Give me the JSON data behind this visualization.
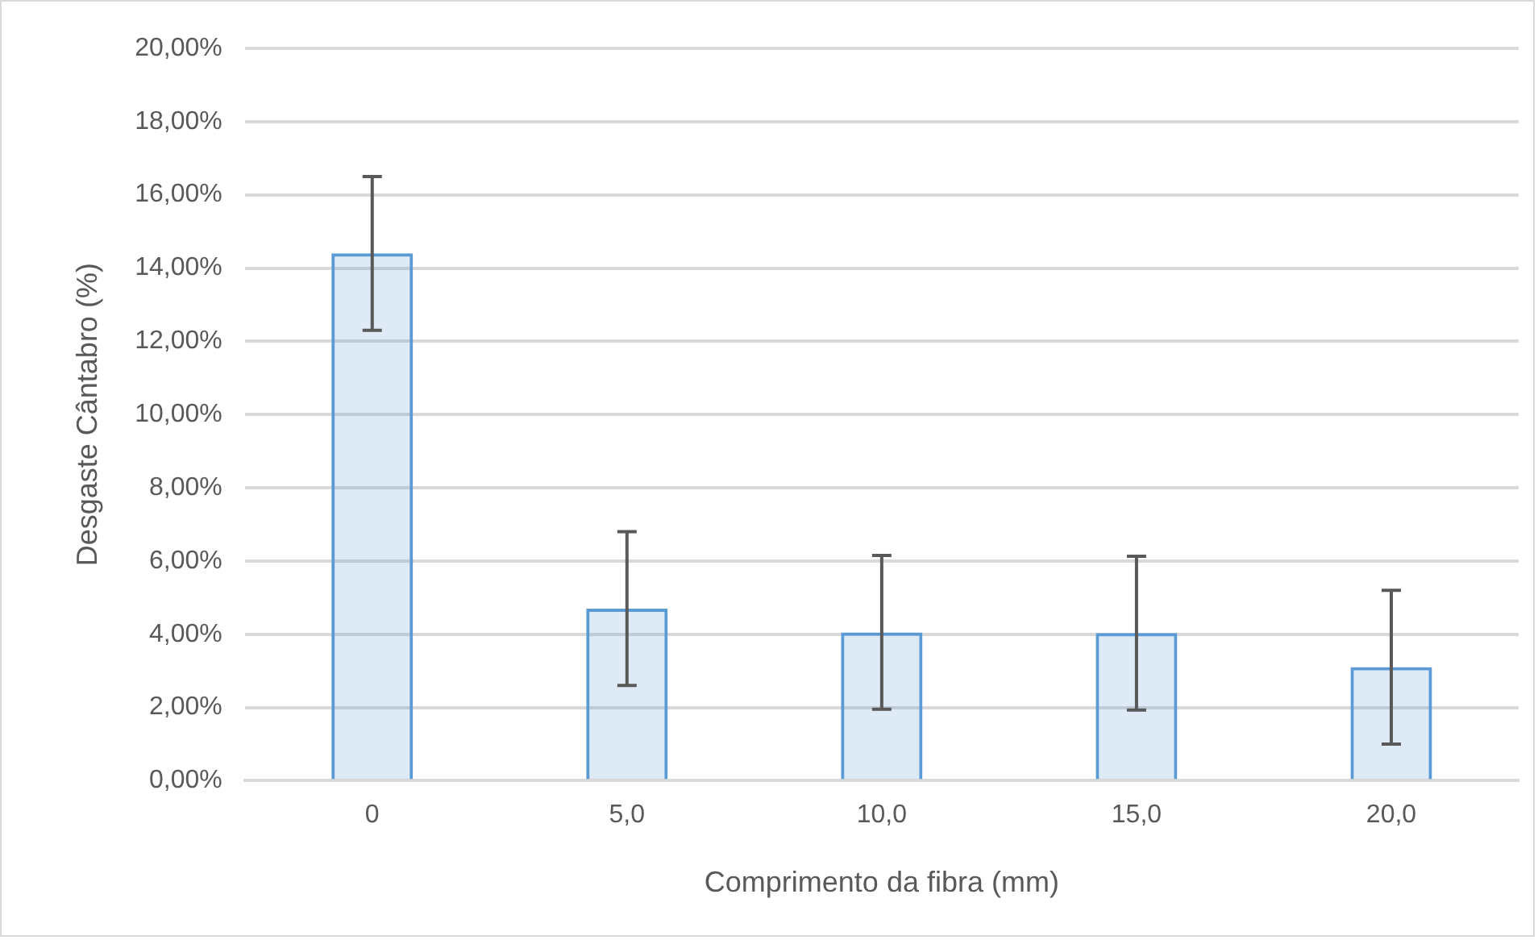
{
  "chart_data": {
    "type": "bar",
    "xlabel": "Comprimento da fibra (mm)",
    "ylabel": "Desgaste Cântabro (%)",
    "categories": [
      "0",
      "5,0",
      "10,0",
      "15,0",
      "20,0"
    ],
    "values": [
      14.4,
      4.7,
      4.05,
      4.03,
      3.1
    ],
    "errors": [
      2.1,
      2.1,
      2.1,
      2.1,
      2.1
    ],
    "color": "#5b9bd5",
    "ylim": [
      0,
      20
    ],
    "yticks": [
      {
        "value": 0,
        "label": "0,00%"
      },
      {
        "value": 2,
        "label": "2,00%"
      },
      {
        "value": 4,
        "label": "4,00%"
      },
      {
        "value": 6,
        "label": "6,00%"
      },
      {
        "value": 8,
        "label": "8,00%"
      },
      {
        "value": 10,
        "label": "10,00%"
      },
      {
        "value": 12,
        "label": "12,00%"
      },
      {
        "value": 14,
        "label": "14,00%"
      },
      {
        "value": 16,
        "label": "16,00%"
      },
      {
        "value": 18,
        "label": "18,00%"
      },
      {
        "value": 20,
        "label": "20,00%"
      }
    ],
    "grid": "y",
    "legend": false
  }
}
